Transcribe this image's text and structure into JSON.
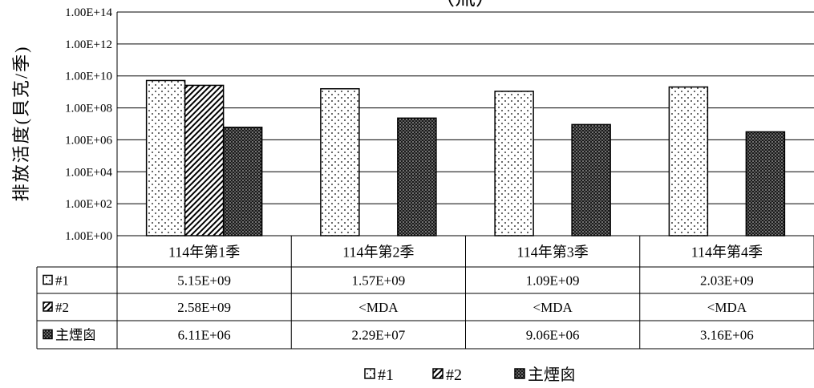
{
  "chart_data": {
    "type": "bar",
    "title_fragment": "（氚）",
    "ylabel": "排放活度(貝克/季)",
    "y_scale": "log",
    "ylim": [
      1,
      100000000000000.0
    ],
    "y_ticks": [
      "1.00E+00",
      "1.00E+02",
      "1.00E+04",
      "1.00E+06",
      "1.00E+08",
      "1.00E+10",
      "1.00E+12",
      "1.00E+14"
    ],
    "grid": true,
    "legend_position": "bottom",
    "categories": [
      "114年第1季",
      "114年第2季",
      "114年第3季",
      "114年第4季"
    ],
    "series": [
      {
        "name": "#1",
        "values": [
          5150000000.0,
          1570000000.0,
          1090000000.0,
          2030000000.0
        ],
        "labels": [
          "5.15E+09",
          "1.57E+09",
          "1.09E+09",
          "2.03E+09"
        ],
        "pattern": "dots"
      },
      {
        "name": "#2",
        "values": [
          2580000000.0,
          null,
          null,
          null
        ],
        "labels": [
          "2.58E+09",
          "<MDA",
          "<MDA",
          "<MDA"
        ],
        "pattern": "diagonal"
      },
      {
        "name": "主煙囪",
        "values": [
          6110000.0,
          22900000.0,
          9060000.0,
          3160000.0
        ],
        "labels": [
          "6.11E+06",
          "2.29E+07",
          "9.06E+06",
          "3.16E+06"
        ],
        "pattern": "dense"
      }
    ]
  }
}
